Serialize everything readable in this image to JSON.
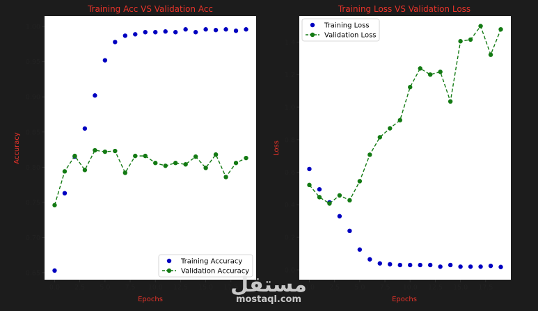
{
  "chart_data": [
    {
      "type": "line",
      "title": "Training Acc VS Validation Acc",
      "xlabel": "Epochs",
      "ylabel": "Accuracy",
      "xlim": [
        -1,
        20
      ],
      "ylim": [
        0.64,
        1.015
      ],
      "xticks": [
        0.0,
        2.5,
        5.0,
        7.5,
        10.0,
        12.5,
        15.0,
        17.5
      ],
      "xtick_labels": [
        "0.0",
        "2.5",
        "5.0",
        "7.5",
        "10.0",
        "12.5",
        "15.0",
        "17.5"
      ],
      "yticks": [
        0.65,
        0.7,
        0.75,
        0.8,
        0.85,
        0.9,
        0.95,
        1.0
      ],
      "ytick_labels": [
        "0.65",
        "0.70",
        "0.75",
        "0.80",
        "0.85",
        "0.90",
        "0.95",
        "1.00"
      ],
      "legend_position": "lower-right",
      "x": [
        0,
        1,
        2,
        3,
        4,
        5,
        6,
        7,
        8,
        9,
        10,
        11,
        12,
        13,
        14,
        15,
        16,
        17,
        18,
        19
      ],
      "series": [
        {
          "name": "Training Accuracy",
          "style": "dots",
          "color": "#0000c0",
          "values": [
            0.653,
            0.763,
            0.815,
            0.855,
            0.902,
            0.952,
            0.978,
            0.987,
            0.989,
            0.992,
            0.992,
            0.993,
            0.992,
            0.996,
            0.992,
            0.996,
            0.995,
            0.996,
            0.994,
            0.996
          ]
        },
        {
          "name": "Validation Accuracy",
          "style": "dashed-dots",
          "color": "#137a13",
          "values": [
            0.746,
            0.794,
            0.816,
            0.796,
            0.824,
            0.822,
            0.823,
            0.792,
            0.816,
            0.816,
            0.806,
            0.802,
            0.806,
            0.804,
            0.815,
            0.799,
            0.818,
            0.786,
            0.806,
            0.813
          ]
        }
      ]
    },
    {
      "type": "line",
      "title": "Training Loss VS Validation Loss",
      "xlabel": "Epochs",
      "ylabel": "Loss",
      "xlim": [
        -1,
        20
      ],
      "ylim": [
        -0.06,
        1.56
      ],
      "xticks": [
        0.0,
        2.5,
        5.0,
        7.5,
        10.0,
        12.5,
        15.0,
        17.5
      ],
      "xtick_labels": [
        "0.0",
        "2.5",
        "5.0",
        "7.5",
        "10.0",
        "12.5",
        "15.0",
        "17.5"
      ],
      "yticks": [
        0.0,
        0.2,
        0.4,
        0.6,
        0.8,
        1.0,
        1.2,
        1.4
      ],
      "ytick_labels": [
        "0.0",
        "0.2",
        "0.4",
        "0.6",
        "0.8",
        "1.0",
        "1.2",
        "1.4"
      ],
      "legend_position": "top-left",
      "x": [
        0,
        1,
        2,
        3,
        4,
        5,
        6,
        7,
        8,
        9,
        10,
        11,
        12,
        13,
        14,
        15,
        16,
        17,
        18,
        19
      ],
      "series": [
        {
          "name": "Training Loss",
          "style": "dots",
          "color": "#0000c0",
          "values": [
            0.62,
            0.495,
            0.415,
            0.33,
            0.24,
            0.125,
            0.065,
            0.04,
            0.035,
            0.03,
            0.03,
            0.03,
            0.03,
            0.02,
            0.03,
            0.02,
            0.02,
            0.02,
            0.025,
            0.018
          ]
        },
        {
          "name": "Validation Loss",
          "style": "dashed-dots",
          "color": "#137a13",
          "values": [
            0.522,
            0.447,
            0.408,
            0.458,
            0.428,
            0.545,
            0.708,
            0.815,
            0.87,
            0.92,
            1.123,
            1.238,
            1.2,
            1.217,
            1.035,
            1.405,
            1.415,
            1.498,
            1.322,
            1.478
          ]
        }
      ]
    }
  ],
  "watermark": {
    "arabic": "مستقل",
    "domain": "mostaql.com"
  }
}
